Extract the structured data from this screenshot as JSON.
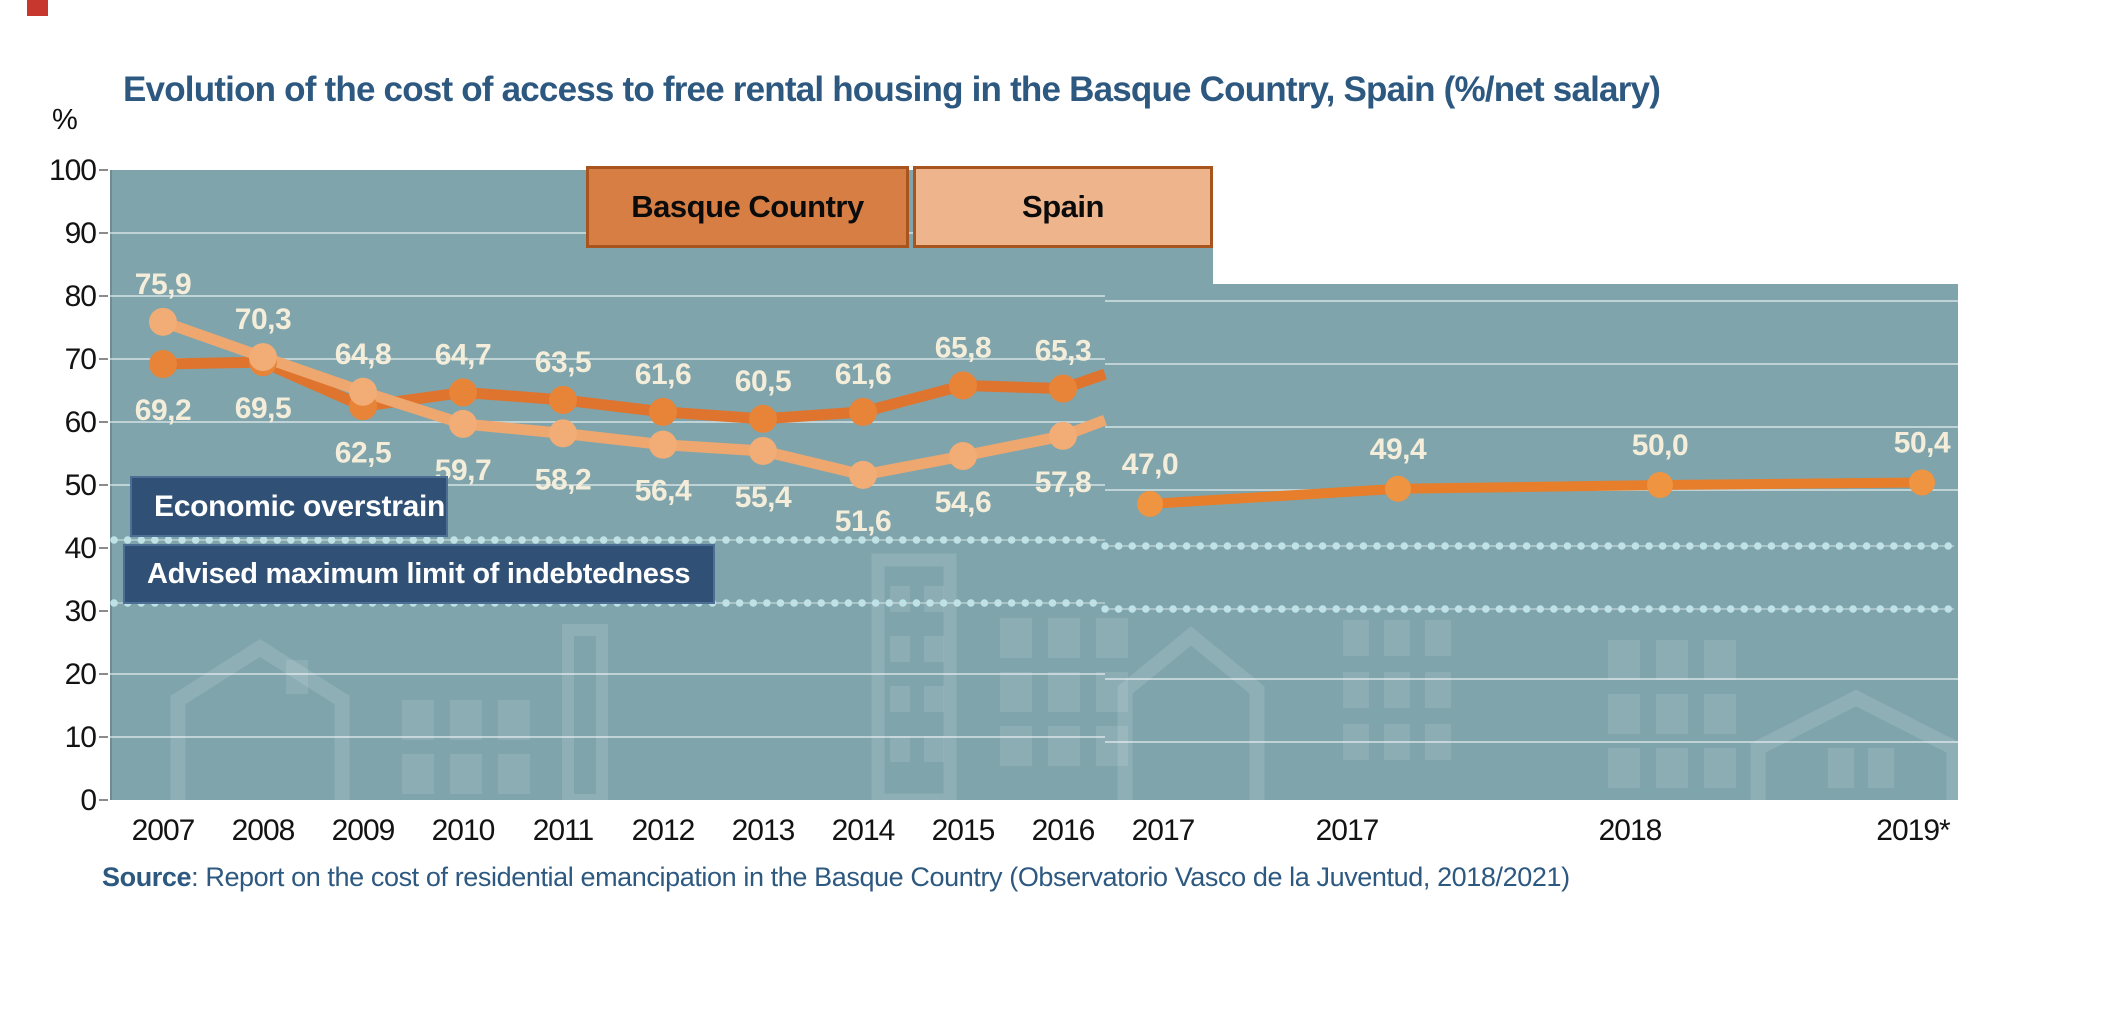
{
  "page": {
    "background": "#ffffff",
    "corner_accent_color": "#c8372d"
  },
  "title": "Evolution of the cost of access to free rental housing in the Basque Country, Spain (%/net salary)",
  "y_axis": {
    "unit_label": "%",
    "ticks": [
      100,
      90,
      80,
      70,
      60,
      50,
      40,
      30,
      20,
      10,
      0
    ]
  },
  "x_axis": {
    "left_panel_labels": [
      "2007",
      "2008",
      "2009",
      "2010",
      "2011",
      "2012",
      "2013",
      "2014",
      "2015",
      "2016",
      "2017"
    ],
    "right_panel_labels": [
      "2017",
      "2018",
      "2019*"
    ]
  },
  "legend": {
    "items": [
      {
        "label": "Basque Country",
        "fill": "#d67e44"
      },
      {
        "label": "Spain",
        "fill": "#eeb58d"
      }
    ],
    "border_color": "#a8541f"
  },
  "annotations": {
    "economic_overstrain": "Economic overstrain",
    "advised_limit": "Advised maximum limit of indebtedness",
    "box_color": "#305175"
  },
  "source": {
    "label": "Source",
    "text": ": Report on the cost of residential emancipation in the Basque Country (Observatorio Vasco de la Juventud, 2018/2021)"
  },
  "chart_data": {
    "type": "line",
    "title": "Evolution of the cost of access to free rental housing in the Basque Country, Spain (%/net salary)",
    "ylabel": "%",
    "ylim": [
      0,
      100
    ],
    "grid": true,
    "legend_position": "top-center",
    "decimal_separator": ",",
    "background_color": "#7fa4ac",
    "series": [
      {
        "name": "Basque Country",
        "panel": "left",
        "color": "#df742e",
        "dot_color": "#e78438",
        "x": [
          "2007",
          "2008",
          "2009",
          "2010",
          "2011",
          "2012",
          "2013",
          "2014",
          "2015",
          "2016"
        ],
        "values": [
          69.2,
          69.5,
          62.5,
          64.7,
          63.5,
          61.6,
          60.5,
          61.6,
          65.8,
          65.3
        ]
      },
      {
        "name": "Spain",
        "panel": "left",
        "color": "#eea76e",
        "dot_color": "#f1ad75",
        "x": [
          "2007",
          "2008",
          "2009",
          "2010",
          "2011",
          "2012",
          "2013",
          "2014",
          "2015",
          "2016"
        ],
        "values": [
          75.9,
          70.3,
          64.8,
          59.7,
          58.2,
          56.4,
          55.4,
          51.6,
          54.6,
          57.8
        ]
      },
      {
        "name": "Basque Country 2017-2019*",
        "panel": "right",
        "color": "#e67e2c",
        "dot_color": "#ef9440",
        "x": [
          "2017",
          "2017",
          "2018",
          "2019*"
        ],
        "values": [
          47.0,
          49.4,
          50.0,
          50.4
        ]
      }
    ],
    "reference_lines": [
      {
        "label": "Economic overstrain",
        "value": 40
      },
      {
        "label": "Advised maximum limit of indebtedness",
        "value": 30
      }
    ]
  }
}
